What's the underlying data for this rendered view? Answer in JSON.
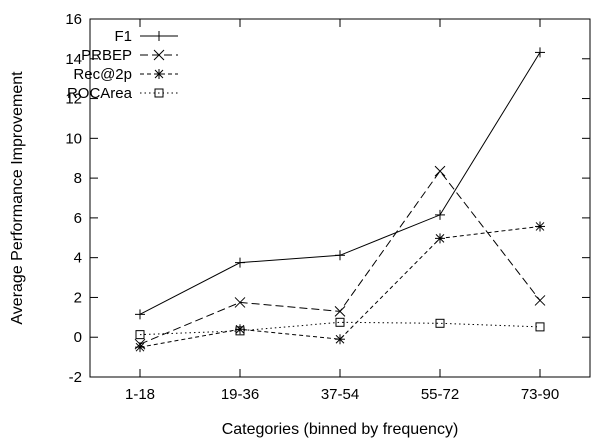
{
  "chart_data": {
    "type": "line",
    "title": "",
    "xlabel": "Categories (binned by frequency)",
    "ylabel": "Average Performance Improvement",
    "categories": [
      "1-18",
      "19-36",
      "37-54",
      "55-72",
      "73-90"
    ],
    "ylim": [
      -2,
      16
    ],
    "yticks": [
      -2,
      0,
      2,
      4,
      6,
      8,
      10,
      12,
      14,
      16
    ],
    "grid": false,
    "legend_position": "top-left",
    "series": [
      {
        "name": "F1",
        "values": [
          1.15,
          3.75,
          4.12,
          6.15,
          14.32
        ],
        "marker": "plus",
        "dash": "solid"
      },
      {
        "name": "PRBEP",
        "values": [
          -0.35,
          1.75,
          1.3,
          8.35,
          1.85
        ],
        "marker": "cross",
        "dash": "dashed"
      },
      {
        "name": "Rec@2p",
        "values": [
          -0.5,
          0.4,
          -0.1,
          4.97,
          5.57
        ],
        "marker": "star",
        "dash": "short-dashed"
      },
      {
        "name": "ROCArea",
        "values": [
          0.13,
          0.32,
          0.75,
          0.7,
          0.52
        ],
        "marker": "square",
        "dash": "dotted"
      }
    ]
  }
}
